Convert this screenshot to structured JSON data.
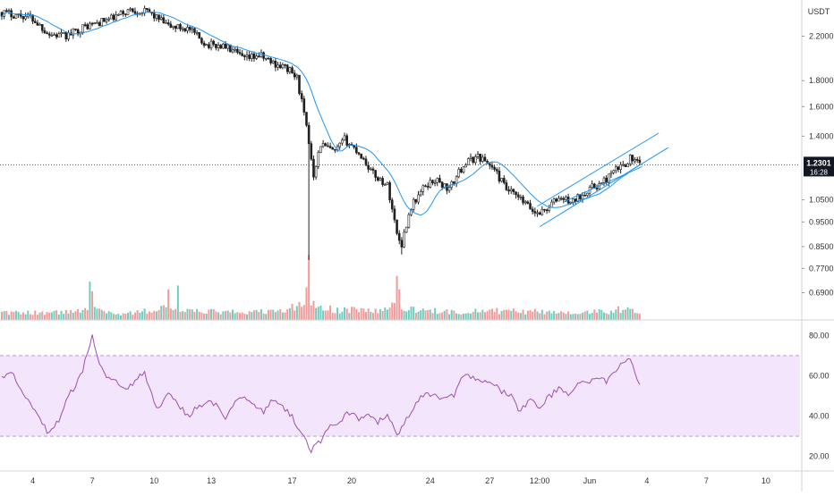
{
  "chart_data": {
    "type": "candlestick",
    "currency": "USDT",
    "last_price": "1.2301",
    "countdown": "16:28",
    "price_axis": {
      "scale": "log",
      "ylim": [
        0.63,
        2.55
      ],
      "ticks": [
        "2.2000",
        "1.8000",
        "1.6000",
        "1.4000",
        "1.0500",
        "0.9500",
        "0.8500",
        "0.7700",
        "0.6900"
      ]
    },
    "x_axis_ticks": [
      "4",
      "7",
      "10",
      "13",
      "17",
      "20",
      "24",
      "27",
      "12:00",
      "Jun",
      "4",
      "7",
      "10"
    ],
    "price_knots": [
      [
        0,
        2.45
      ],
      [
        12,
        2.4
      ],
      [
        20,
        2.22
      ],
      [
        27,
        2.2
      ],
      [
        35,
        2.3
      ],
      [
        46,
        2.38
      ],
      [
        54,
        2.48
      ],
      [
        62,
        2.45
      ],
      [
        70,
        2.3
      ],
      [
        78,
        2.28
      ],
      [
        86,
        2.12
      ],
      [
        94,
        2.1
      ],
      [
        102,
        1.98
      ],
      [
        108,
        2.02
      ],
      [
        114,
        1.95
      ],
      [
        120,
        1.9
      ],
      [
        124,
        1.82
      ],
      [
        128,
        1.45
      ],
      [
        131,
        1.18
      ],
      [
        134,
        1.35
      ],
      [
        140,
        1.3
      ],
      [
        144,
        1.38
      ],
      [
        150,
        1.3
      ],
      [
        156,
        1.18
      ],
      [
        162,
        1.12
      ],
      [
        166,
        0.9
      ],
      [
        168,
        0.86
      ],
      [
        172,
        1.02
      ],
      [
        178,
        1.12
      ],
      [
        182,
        1.15
      ],
      [
        188,
        1.1
      ],
      [
        194,
        1.23
      ],
      [
        200,
        1.28
      ],
      [
        206,
        1.22
      ],
      [
        212,
        1.1
      ],
      [
        218,
        1.05
      ],
      [
        224,
        0.99
      ],
      [
        228,
        1.0
      ],
      [
        234,
        1.06
      ],
      [
        240,
        1.04
      ],
      [
        246,
        1.1
      ],
      [
        252,
        1.13
      ],
      [
        258,
        1.2
      ],
      [
        262,
        1.24
      ],
      [
        264,
        1.27
      ],
      [
        268,
        1.23
      ]
    ],
    "volume_knots": [
      [
        0,
        0.35
      ],
      [
        30,
        0.4
      ],
      [
        37,
        0.75
      ],
      [
        40,
        0.55
      ],
      [
        50,
        0.3
      ],
      [
        63,
        0.5
      ],
      [
        70,
        0.7
      ],
      [
        76,
        0.45
      ],
      [
        100,
        0.4
      ],
      [
        118,
        0.45
      ],
      [
        128,
        0.95
      ],
      [
        132,
        0.75
      ],
      [
        140,
        0.5
      ],
      [
        150,
        0.55
      ],
      [
        158,
        0.45
      ],
      [
        166,
        0.8
      ],
      [
        170,
        0.55
      ],
      [
        190,
        0.4
      ],
      [
        200,
        0.5
      ],
      [
        215,
        0.45
      ],
      [
        235,
        0.4
      ],
      [
        255,
        0.45
      ],
      [
        262,
        0.6
      ],
      [
        268,
        0.45
      ]
    ],
    "volume_spikes": [
      [
        37,
        2.0
      ],
      [
        38,
        1.5
      ],
      [
        129,
        3.4
      ],
      [
        128,
        1.7
      ],
      [
        166,
        2.3
      ],
      [
        167,
        1.6
      ],
      [
        70,
        1.6
      ],
      [
        74,
        1.8
      ]
    ],
    "rsi": {
      "ylim": [
        15,
        85
      ],
      "ticks": [
        "80.00",
        "60.00",
        "40.00",
        "20.00"
      ],
      "band": [
        30,
        70
      ],
      "knots": [
        [
          0,
          60
        ],
        [
          4,
          62
        ],
        [
          8,
          54
        ],
        [
          12,
          45
        ],
        [
          16,
          38
        ],
        [
          20,
          31
        ],
        [
          24,
          38
        ],
        [
          28,
          50
        ],
        [
          32,
          57
        ],
        [
          34,
          63
        ],
        [
          36,
          72
        ],
        [
          38,
          80
        ],
        [
          41,
          65
        ],
        [
          44,
          60
        ],
        [
          48,
          57
        ],
        [
          52,
          52
        ],
        [
          56,
          58
        ],
        [
          60,
          61
        ],
        [
          63,
          50
        ],
        [
          66,
          43
        ],
        [
          70,
          52
        ],
        [
          74,
          46
        ],
        [
          78,
          40
        ],
        [
          82,
          44
        ],
        [
          86,
          47
        ],
        [
          90,
          45
        ],
        [
          94,
          38
        ],
        [
          98,
          48
        ],
        [
          102,
          50
        ],
        [
          106,
          46
        ],
        [
          110,
          42
        ],
        [
          114,
          48
        ],
        [
          118,
          45
        ],
        [
          122,
          40
        ],
        [
          126,
          31
        ],
        [
          130,
          23
        ],
        [
          134,
          28
        ],
        [
          138,
          35
        ],
        [
          142,
          38
        ],
        [
          146,
          42
        ],
        [
          150,
          38
        ],
        [
          154,
          41
        ],
        [
          158,
          37
        ],
        [
          162,
          40
        ],
        [
          166,
          31
        ],
        [
          170,
          38
        ],
        [
          174,
          47
        ],
        [
          178,
          52
        ],
        [
          182,
          50
        ],
        [
          186,
          48
        ],
        [
          190,
          50
        ],
        [
          194,
          60
        ],
        [
          198,
          59
        ],
        [
          202,
          56
        ],
        [
          206,
          57
        ],
        [
          210,
          52
        ],
        [
          214,
          50
        ],
        [
          218,
          42
        ],
        [
          222,
          50
        ],
        [
          226,
          43
        ],
        [
          230,
          50
        ],
        [
          234,
          53
        ],
        [
          238,
          50
        ],
        [
          242,
          57
        ],
        [
          246,
          56
        ],
        [
          250,
          59
        ],
        [
          254,
          57
        ],
        [
          258,
          63
        ],
        [
          262,
          67
        ],
        [
          264,
          69
        ],
        [
          266,
          60
        ],
        [
          268,
          56
        ]
      ]
    },
    "colors": {
      "up": "#26a69a",
      "down": "#1e1e1e",
      "ma": "#2196f3",
      "vol_up": "#6fcdbf",
      "vol_down": "#f39a9a",
      "rsi_line": "#9c4fb3",
      "rsi_band": "#f3e5fb",
      "channel": "#2196f3",
      "axis_text": "#333333",
      "label_bg": "#131722"
    }
  }
}
